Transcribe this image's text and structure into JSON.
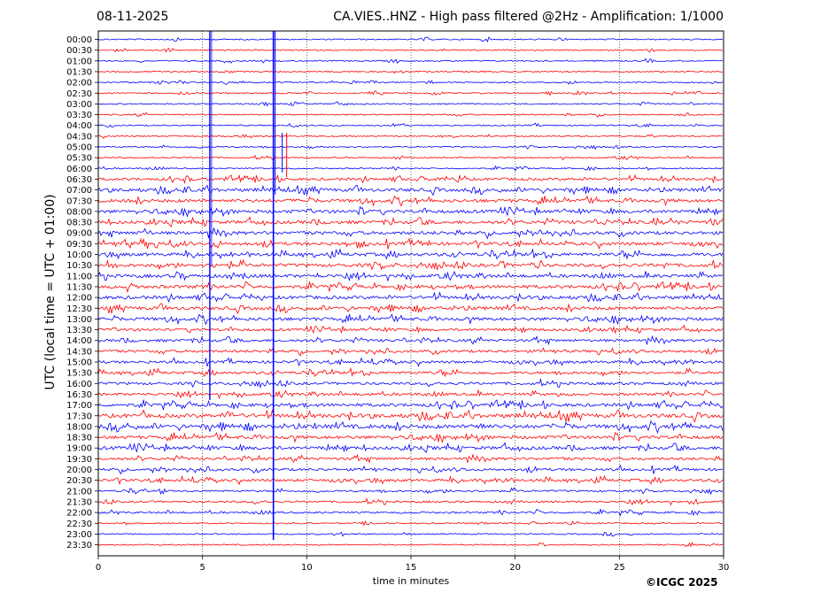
{
  "header": {
    "date": "08-11-2025",
    "title": "CA.VIES..HNZ - High pass filtered @2Hz - Amplification: 1/1000"
  },
  "copyright": "©ICGC 2025",
  "chart_data": {
    "type": "line",
    "title": "CA.VIES..HNZ - High pass filtered @2Hz - Amplification: 1/1000",
    "xlabel": "time in minutes",
    "ylabel": "UTC (local time = UTC + 01:00)",
    "xlim": [
      0,
      30
    ],
    "x_ticks": [
      0,
      5,
      10,
      15,
      20,
      25,
      30
    ],
    "row_labels": [
      "00:00",
      "00:30",
      "01:00",
      "01:30",
      "02:00",
      "02:30",
      "03:00",
      "03:30",
      "04:00",
      "04:30",
      "05:00",
      "05:30",
      "06:00",
      "06:30",
      "07:00",
      "07:30",
      "08:00",
      "08:30",
      "09:00",
      "09:30",
      "10:00",
      "10:30",
      "11:00",
      "11:30",
      "12:00",
      "12:30",
      "13:00",
      "13:30",
      "14:00",
      "14:30",
      "15:00",
      "15:30",
      "16:00",
      "16:30",
      "17:00",
      "17:30",
      "18:00",
      "18:30",
      "19:00",
      "19:30",
      "20:00",
      "20:30",
      "21:00",
      "21:30",
      "22:00",
      "22:30",
      "23:00",
      "23:30"
    ],
    "grid": "vertical dotted lines at x ticks",
    "colors": {
      "even_rows": "#0000ff",
      "odd_rows": "#ff0000"
    },
    "large_events_minutes": [
      5.35,
      8.4
    ],
    "noise_level": [
      1,
      1,
      1,
      1,
      1,
      1,
      1,
      1,
      1,
      1,
      1,
      1,
      1,
      3,
      4,
      4,
      4,
      4,
      4,
      4,
      4,
      4,
      4,
      4,
      4,
      4,
      4,
      3,
      3,
      3,
      3,
      3,
      3,
      3,
      4,
      5,
      5,
      4,
      4,
      3,
      3,
      3,
      2,
      2,
      2,
      1,
      1,
      1
    ]
  }
}
